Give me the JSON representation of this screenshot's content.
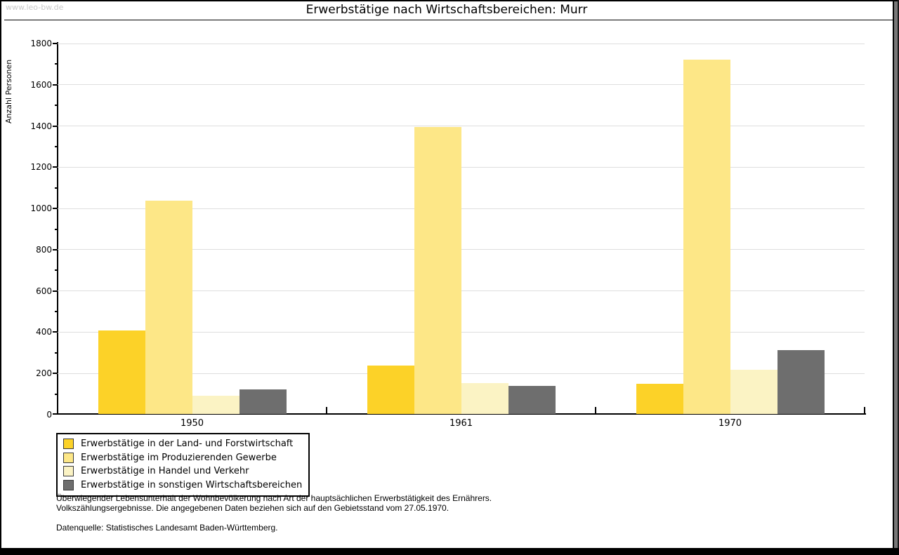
{
  "header": {
    "watermark": "www.leo-bw.de",
    "title": "Erwerbstätige nach Wirtschaftsbereichen: Murr"
  },
  "chart_data": {
    "type": "bar",
    "title": "Erwerbstätige nach Wirtschaftsbereichen: Murr",
    "xlabel": "",
    "ylabel": "Anzahl Personen",
    "ylim": [
      0,
      1800
    ],
    "yticks": [
      0,
      200,
      400,
      600,
      800,
      1000,
      1200,
      1400,
      1600,
      1800
    ],
    "ytick_minor_step": 100,
    "grid": true,
    "legend_position": "bottom-left",
    "categories": [
      "1950",
      "1961",
      "1970"
    ],
    "series": [
      {
        "name": "Erwerbstätige in der Land- und Forstwirtschaft",
        "color": "#FCD228",
        "values": [
          405,
          235,
          145
        ]
      },
      {
        "name": "Erwerbstätige im Produzierenden Gewerbe",
        "color": "#FDE787",
        "values": [
          1035,
          1390,
          1720
        ]
      },
      {
        "name": "Erwerbstätige in Handel und Verkehr",
        "color": "#FBF3C4",
        "values": [
          90,
          150,
          215
        ]
      },
      {
        "name": "Erwerbstätige in sonstigen Wirtschaftsbereichen",
        "color": "#6E6E6E",
        "values": [
          120,
          135,
          310
        ]
      }
    ]
  },
  "footnotes": {
    "line1": "Überwiegender Lebensunterhalt der Wohnbevölkerung nach Art der hauptsächlichen Erwerbstätigkeit des Ernährers.",
    "line2": "Volkszählungsergebnisse. Die angegebenen Daten beziehen sich auf den Gebietsstand vom 27.05.1970.",
    "source": "Datenquelle: Statistisches Landesamt Baden-Württemberg."
  },
  "colors": {
    "gridline": "#dedede",
    "axis": "#000000",
    "watermark_text": "#c9c9c9",
    "frame": "#000000",
    "shadow": "#787878"
  }
}
